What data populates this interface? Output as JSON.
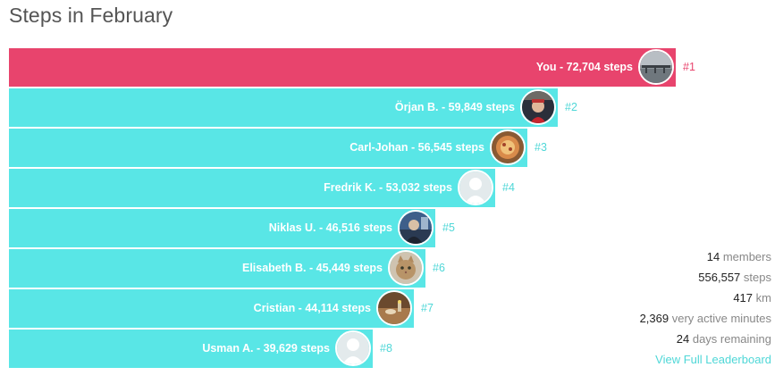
{
  "title": "Steps in February",
  "colors": {
    "highlight": "#e8446d",
    "bar": "#59e6e6",
    "rank_highlight": "#e8446d",
    "rank": "#4fd7d7"
  },
  "leaders": [
    {
      "label": "You - 72,704 steps",
      "rank": "#1",
      "steps": 72704,
      "highlight": true,
      "avatar": "pier-photo"
    },
    {
      "label": "Örjan B. - 59,849 steps",
      "rank": "#2",
      "steps": 59849,
      "highlight": false,
      "avatar": "person-photo"
    },
    {
      "label": "Carl-Johan - 56,545 steps",
      "rank": "#3",
      "steps": 56545,
      "highlight": false,
      "avatar": "food-photo"
    },
    {
      "label": "Fredrik K. - 53,032 steps",
      "rank": "#4",
      "steps": 53032,
      "highlight": false,
      "avatar": "default-user"
    },
    {
      "label": "Niklas U. - 46,516 steps",
      "rank": "#5",
      "steps": 46516,
      "highlight": false,
      "avatar": "person-photo-2"
    },
    {
      "label": "Elisabeth B. - 45,449 steps",
      "rank": "#6",
      "steps": 45449,
      "highlight": false,
      "avatar": "cat-photo"
    },
    {
      "label": "Cristian - 44,114 steps",
      "rank": "#7",
      "steps": 44114,
      "highlight": false,
      "avatar": "table-photo"
    },
    {
      "label": "Usman A. - 39,629 steps",
      "rank": "#8",
      "steps": 39629,
      "highlight": false,
      "avatar": "default-user"
    }
  ],
  "stats": {
    "members": {
      "value": "14",
      "label": "members"
    },
    "steps": {
      "value": "556,557",
      "label": "steps"
    },
    "km": {
      "value": "417",
      "label": "km"
    },
    "active": {
      "value": "2,369",
      "label": "very active minutes"
    },
    "remaining": {
      "value": "24",
      "label": "days remaining"
    },
    "link": "View Full Leaderboard"
  }
}
